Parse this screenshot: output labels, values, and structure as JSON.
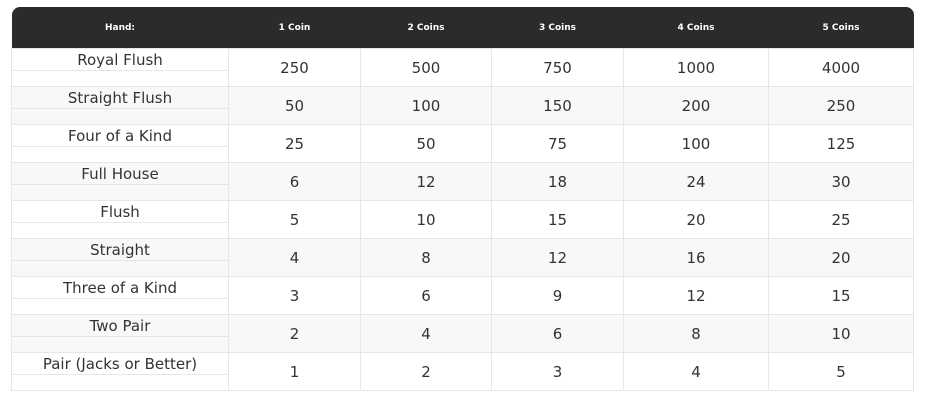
{
  "table": {
    "headers": [
      "Hand:",
      "1 Coin",
      "2 Coins",
      "3 Coins",
      "4 Coins",
      "5 Coins"
    ],
    "rows": [
      [
        "Royal Flush",
        250,
        500,
        750,
        1000,
        4000
      ],
      [
        "Straight Flush",
        50,
        100,
        150,
        200,
        250
      ],
      [
        "Four of a Kind",
        25,
        50,
        75,
        100,
        125
      ],
      [
        "Full House",
        6,
        12,
        18,
        24,
        30
      ],
      [
        "Flush",
        5,
        10,
        15,
        20,
        25
      ],
      [
        "Straight",
        4,
        8,
        12,
        16,
        20
      ],
      [
        "Three of a Kind",
        3,
        6,
        9,
        12,
        15
      ],
      [
        "Two Pair",
        2,
        4,
        6,
        8,
        10
      ],
      [
        "Pair (Jacks or Better)",
        1,
        2,
        3,
        4,
        5
      ]
    ]
  }
}
